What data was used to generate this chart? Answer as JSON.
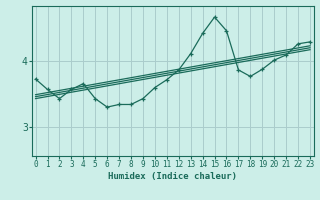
{
  "xlabel": "Humidex (Indice chaleur)",
  "bg_color": "#cceee8",
  "line_color": "#1a6b5a",
  "grid_color": "#aacccc",
  "x_ticks": [
    0,
    1,
    2,
    3,
    4,
    5,
    6,
    7,
    8,
    9,
    10,
    11,
    12,
    13,
    14,
    15,
    16,
    17,
    18,
    19,
    20,
    21,
    22,
    23
  ],
  "y_ticks": [
    3,
    4
  ],
  "ylim": [
    2.55,
    4.85
  ],
  "xlim": [
    -0.3,
    23.3
  ],
  "curve1_x": [
    0,
    1,
    2,
    3,
    4,
    5,
    6,
    7,
    8,
    9,
    10,
    11,
    12,
    13,
    14,
    15,
    16,
    17,
    18,
    19,
    20,
    21,
    22,
    23
  ],
  "curve1_y": [
    3.73,
    3.57,
    3.43,
    3.57,
    3.66,
    3.43,
    3.3,
    3.34,
    3.34,
    3.43,
    3.6,
    3.72,
    3.87,
    4.12,
    4.43,
    4.68,
    4.47,
    3.87,
    3.77,
    3.88,
    4.02,
    4.1,
    4.27,
    4.3
  ],
  "curve2_x": [
    0,
    23
  ],
  "curve2_y": [
    3.43,
    4.18
  ],
  "curve3_x": [
    0,
    23
  ],
  "curve3_y": [
    3.46,
    4.21
  ],
  "curve4_x": [
    0,
    23
  ],
  "curve4_y": [
    3.49,
    4.24
  ]
}
